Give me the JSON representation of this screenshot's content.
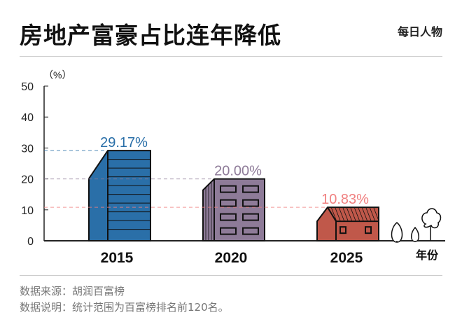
{
  "title": "房地产富豪占比连年降低",
  "logo": "每日人物",
  "footer": {
    "source": "数据来源：胡润百富榜",
    "note": "数据说明：统计范围为百富榜排名前120名。"
  },
  "chart_data": {
    "type": "bar",
    "title": "房地产富豪占比连年降低",
    "ylabel": "（%）",
    "xlabel": "年份",
    "ylim": [
      0,
      50
    ],
    "yticks": [
      0,
      10,
      20,
      30,
      40,
      50
    ],
    "categories": [
      "2015",
      "2020",
      "2025"
    ],
    "values": [
      29.17,
      20.0,
      10.83
    ],
    "data_labels": [
      "29.17%",
      "20.00%",
      "10.83%"
    ],
    "colors": [
      "#2a6fa8",
      "#8e7b98",
      "#c0584a"
    ],
    "label_colors": [
      "#2a6fa8",
      "#8e7b98",
      "#f08080"
    ],
    "grid": false
  }
}
